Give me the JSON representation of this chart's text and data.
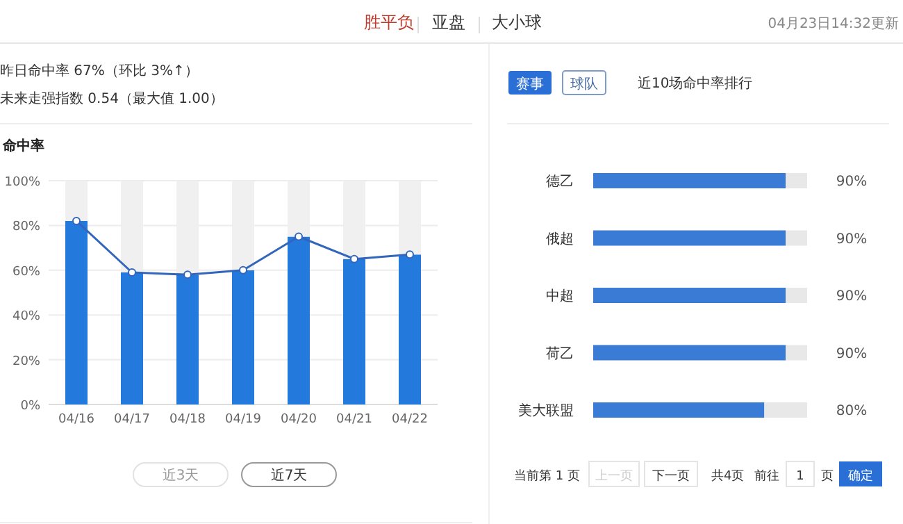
{
  "chart_data": [
    {
      "type": "bar",
      "title": "命中率",
      "categories": [
        "04/16",
        "04/17",
        "04/18",
        "04/19",
        "04/20",
        "04/21",
        "04/22"
      ],
      "series": [
        {
          "type": "bar",
          "color": "#2479dd",
          "values": [
            82,
            59,
            58,
            60,
            75,
            65,
            67
          ]
        },
        {
          "type": "bar",
          "color": "#f0f0f0",
          "values": [
            18,
            41,
            42,
            40,
            25,
            35,
            33
          ]
        },
        {
          "type": "line",
          "color": "#3366bb",
          "marker": "circle",
          "values": [
            82,
            59,
            58,
            60,
            75,
            65,
            67
          ]
        }
      ],
      "ylim": [
        0,
        100
      ],
      "yticks": [
        {
          "value": 0,
          "label": "0%"
        },
        {
          "value": 20,
          "label": "20%"
        },
        {
          "value": 40,
          "label": "40%"
        },
        {
          "value": 60,
          "label": "60%"
        },
        {
          "value": 80,
          "label": "80%"
        },
        {
          "value": 100,
          "label": "100%"
        }
      ],
      "grid": "y",
      "stacked": true,
      "annotations": [
        "胜平负",
        "亚盘",
        "大小球",
        "04月23日14:32更新",
        "昨日命中率 67%（环比 3%↑）",
        "未来走强指数 0.54（最大值 1.00）",
        "近3天",
        "近7天"
      ]
    },
    {
      "type": "bar",
      "orientation": "horizontal",
      "title": "近10场命中率排行",
      "categories": [
        "德乙",
        "俄超",
        "中超",
        "荷乙",
        "美大联盟"
      ],
      "series": [
        {
          "color": "#3a7bd5",
          "values": [
            90,
            90,
            90,
            90,
            80
          ],
          "value_labels": [
            "90%",
            "90%",
            "90%",
            "90%",
            "80%"
          ]
        },
        {
          "color": "#e8e8e8",
          "values": [
            10,
            10,
            10,
            10,
            20
          ]
        }
      ],
      "xlim": [
        0,
        100
      ],
      "tick_labels": false,
      "stacked": true,
      "annotations": [
        "赛事",
        "球队",
        "当前第 1 页",
        "上一页",
        "下一页",
        "共4页",
        "前往",
        "1",
        "页",
        "确定"
      ]
    }
  ]
}
